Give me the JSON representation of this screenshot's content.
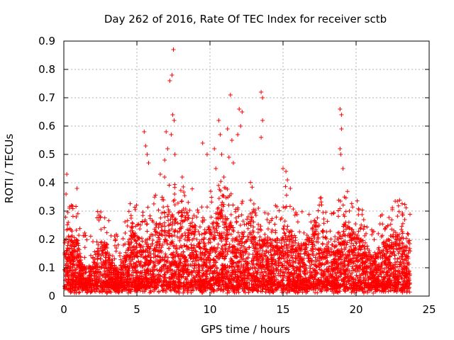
{
  "chart_data": {
    "type": "scatter",
    "title": "Day 262 of 2016, Rate Of TEC Index for receiver sctb",
    "xlabel": "GPS time / hours",
    "ylabel": "ROTI / TECUs",
    "xlim": [
      0,
      25
    ],
    "ylim": [
      0,
      0.9
    ],
    "grid": true,
    "x_ticks": [
      0,
      5,
      10,
      15,
      20,
      25
    ],
    "x_tick_labels": [
      "0",
      "5",
      "10",
      "15",
      "20",
      "25"
    ],
    "y_ticks": [
      0,
      0.1,
      0.2,
      0.3,
      0.4,
      0.5,
      0.6,
      0.7,
      0.8,
      0.9
    ],
    "y_tick_labels": [
      "0",
      "0.1",
      "0.2",
      "0.3",
      "0.4",
      "0.5",
      "0.6",
      "0.7",
      "0.8",
      "0.9"
    ],
    "marker": "plus",
    "color": "#ff0000",
    "series": [
      {
        "name": "ROTI",
        "x_range": [
          0.05,
          23.7
        ],
        "typical_max": [
          0,
          0.15,
          0.3
        ],
        "outliers": [
          [
            0.2,
            0.43
          ],
          [
            0.15,
            0.36
          ],
          [
            0.3,
            0.26
          ],
          [
            0.9,
            0.38
          ],
          [
            0.85,
            0.28
          ],
          [
            5.5,
            0.58
          ],
          [
            5.6,
            0.53
          ],
          [
            5.7,
            0.5
          ],
          [
            5.8,
            0.47
          ],
          [
            6.6,
            0.43
          ],
          [
            6.9,
            0.48
          ],
          [
            7.0,
            0.58
          ],
          [
            7.1,
            0.52
          ],
          [
            7.25,
            0.76
          ],
          [
            7.35,
            0.57
          ],
          [
            7.4,
            0.78
          ],
          [
            7.45,
            0.64
          ],
          [
            7.5,
            0.87
          ],
          [
            7.55,
            0.62
          ],
          [
            7.6,
            0.5
          ],
          [
            9.5,
            0.54
          ],
          [
            9.8,
            0.5
          ],
          [
            10.3,
            0.52
          ],
          [
            10.4,
            0.45
          ],
          [
            10.6,
            0.62
          ],
          [
            10.7,
            0.57
          ],
          [
            10.8,
            0.5
          ],
          [
            11.2,
            0.59
          ],
          [
            11.4,
            0.71
          ],
          [
            11.5,
            0.55
          ],
          [
            11.6,
            0.47
          ],
          [
            11.3,
            0.49
          ],
          [
            11.9,
            0.57
          ],
          [
            12.0,
            0.66
          ],
          [
            12.1,
            0.6
          ],
          [
            12.2,
            0.65
          ],
          [
            13.5,
            0.72
          ],
          [
            13.6,
            0.7
          ],
          [
            13.6,
            0.62
          ],
          [
            13.5,
            0.56
          ],
          [
            15.0,
            0.45
          ],
          [
            15.2,
            0.44
          ],
          [
            15.3,
            0.41
          ],
          [
            15.5,
            0.38
          ],
          [
            18.9,
            0.66
          ],
          [
            19.0,
            0.64
          ],
          [
            19.0,
            0.59
          ],
          [
            18.9,
            0.52
          ],
          [
            18.95,
            0.5
          ],
          [
            19.1,
            0.45
          ]
        ]
      }
    ]
  }
}
